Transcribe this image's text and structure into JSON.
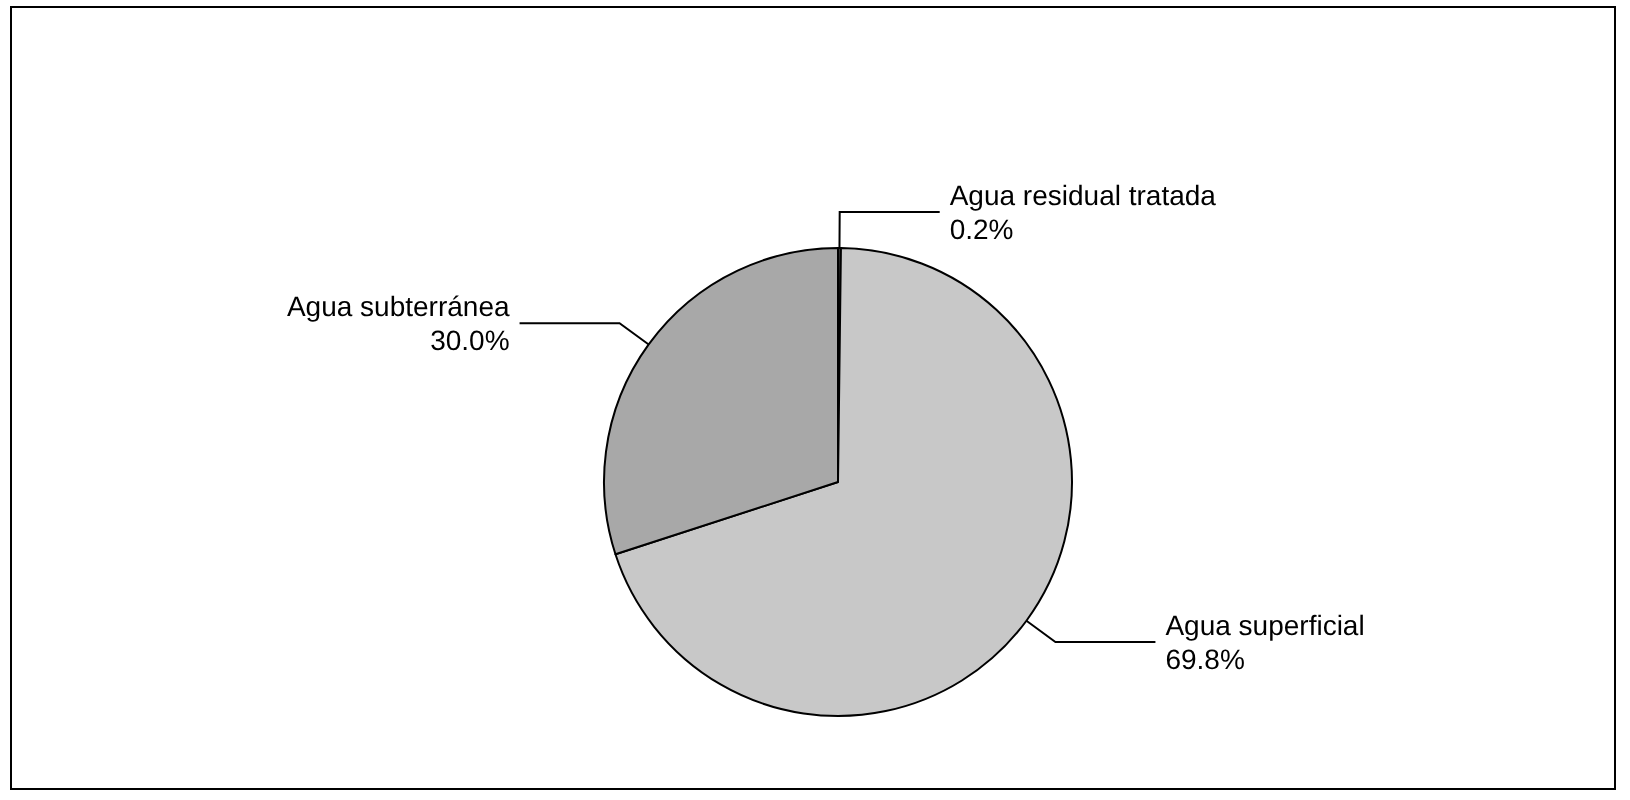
{
  "chart_data": {
    "type": "pie",
    "categories": [
      "Agua residual tratada",
      "Agua superficial",
      "Agua subterránea"
    ],
    "values": [
      0.2,
      69.8,
      30.0
    ],
    "value_labels": [
      "0.2%",
      "69.8%",
      "30.0%"
    ],
    "colors": [
      "#404040",
      "#c8c8c8",
      "#a8a8a8"
    ],
    "legend": false
  }
}
